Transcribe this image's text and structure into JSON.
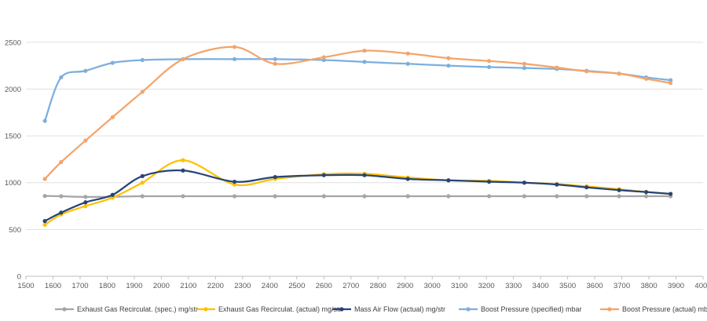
{
  "chart_data": {
    "type": "line",
    "title": "",
    "xlabel": "",
    "ylabel": "",
    "xlim": [
      1500,
      4000
    ],
    "ylim": [
      0,
      2700
    ],
    "x_ticks": [
      1500,
      1600,
      1700,
      1800,
      1900,
      2000,
      2100,
      2200,
      2300,
      2400,
      2500,
      2600,
      2700,
      2800,
      2900,
      3000,
      3100,
      3200,
      3300,
      3400,
      3500,
      3600,
      3700,
      3800,
      3900,
      4000
    ],
    "y_ticks": [
      0,
      500,
      1000,
      1500,
      2000,
      2500
    ],
    "grid": "horizontal",
    "legend_position": "bottom",
    "series": [
      {
        "name": "Exhaust Gas Recirculat. (spec.) mg/str",
        "color": "#a5a5a5",
        "x": [
          1570,
          1630,
          1720,
          1820,
          1930,
          2080,
          2270,
          2420,
          2600,
          2750,
          2910,
          3060,
          3210,
          3340,
          3460,
          3570,
          3690,
          3790,
          3880
        ],
        "y": [
          858,
          855,
          848,
          850,
          855,
          855,
          855,
          855,
          855,
          855,
          855,
          855,
          855,
          855,
          855,
          855,
          855,
          855,
          855
        ]
      },
      {
        "name": "Exhaust Gas Recirculat. (actual) mg/str",
        "color": "#ffc000",
        "x": [
          1570,
          1630,
          1720,
          1820,
          1930,
          2080,
          2270,
          2420,
          2600,
          2750,
          2910,
          3060,
          3210,
          3340,
          3460,
          3570,
          3690,
          3790,
          3880
        ],
        "y": [
          550,
          660,
          750,
          840,
          1000,
          1240,
          980,
          1040,
          1090,
          1095,
          1055,
          1025,
          1020,
          1000,
          985,
          960,
          930,
          900,
          880
        ]
      },
      {
        "name": "Mass Air Flow (actual) mg/str",
        "color": "#264478",
        "x": [
          1570,
          1630,
          1720,
          1820,
          1930,
          2080,
          2270,
          2420,
          2600,
          2750,
          2910,
          3060,
          3210,
          3340,
          3460,
          3570,
          3690,
          3790,
          3880
        ],
        "y": [
          590,
          680,
          790,
          870,
          1070,
          1130,
          1010,
          1060,
          1080,
          1080,
          1040,
          1025,
          1010,
          1000,
          980,
          950,
          920,
          900,
          880
        ]
      },
      {
        "name": "Boost Pressure (specified) mbar",
        "color": "#7cafdd",
        "x": [
          1570,
          1630,
          1720,
          1820,
          1930,
          2080,
          2270,
          2420,
          2600,
          2750,
          2910,
          3060,
          3210,
          3340,
          3460,
          3570,
          3690,
          3790,
          3880
        ],
        "y": [
          1660,
          2125,
          2195,
          2280,
          2310,
          2320,
          2320,
          2320,
          2310,
          2290,
          2270,
          2250,
          2235,
          2225,
          2215,
          2195,
          2165,
          2125,
          2095
        ]
      },
      {
        "name": "Boost Pressure (actual) mbar",
        "color": "#f4a46b",
        "x": [
          1570,
          1630,
          1720,
          1820,
          1930,
          2080,
          2270,
          2420,
          2600,
          2750,
          2910,
          3060,
          3210,
          3340,
          3460,
          3570,
          3690,
          3790,
          3880
        ],
        "y": [
          1040,
          1220,
          1450,
          1700,
          1970,
          2320,
          2450,
          2270,
          2340,
          2410,
          2380,
          2330,
          2300,
          2270,
          2230,
          2190,
          2165,
          2110,
          2065
        ]
      }
    ]
  }
}
